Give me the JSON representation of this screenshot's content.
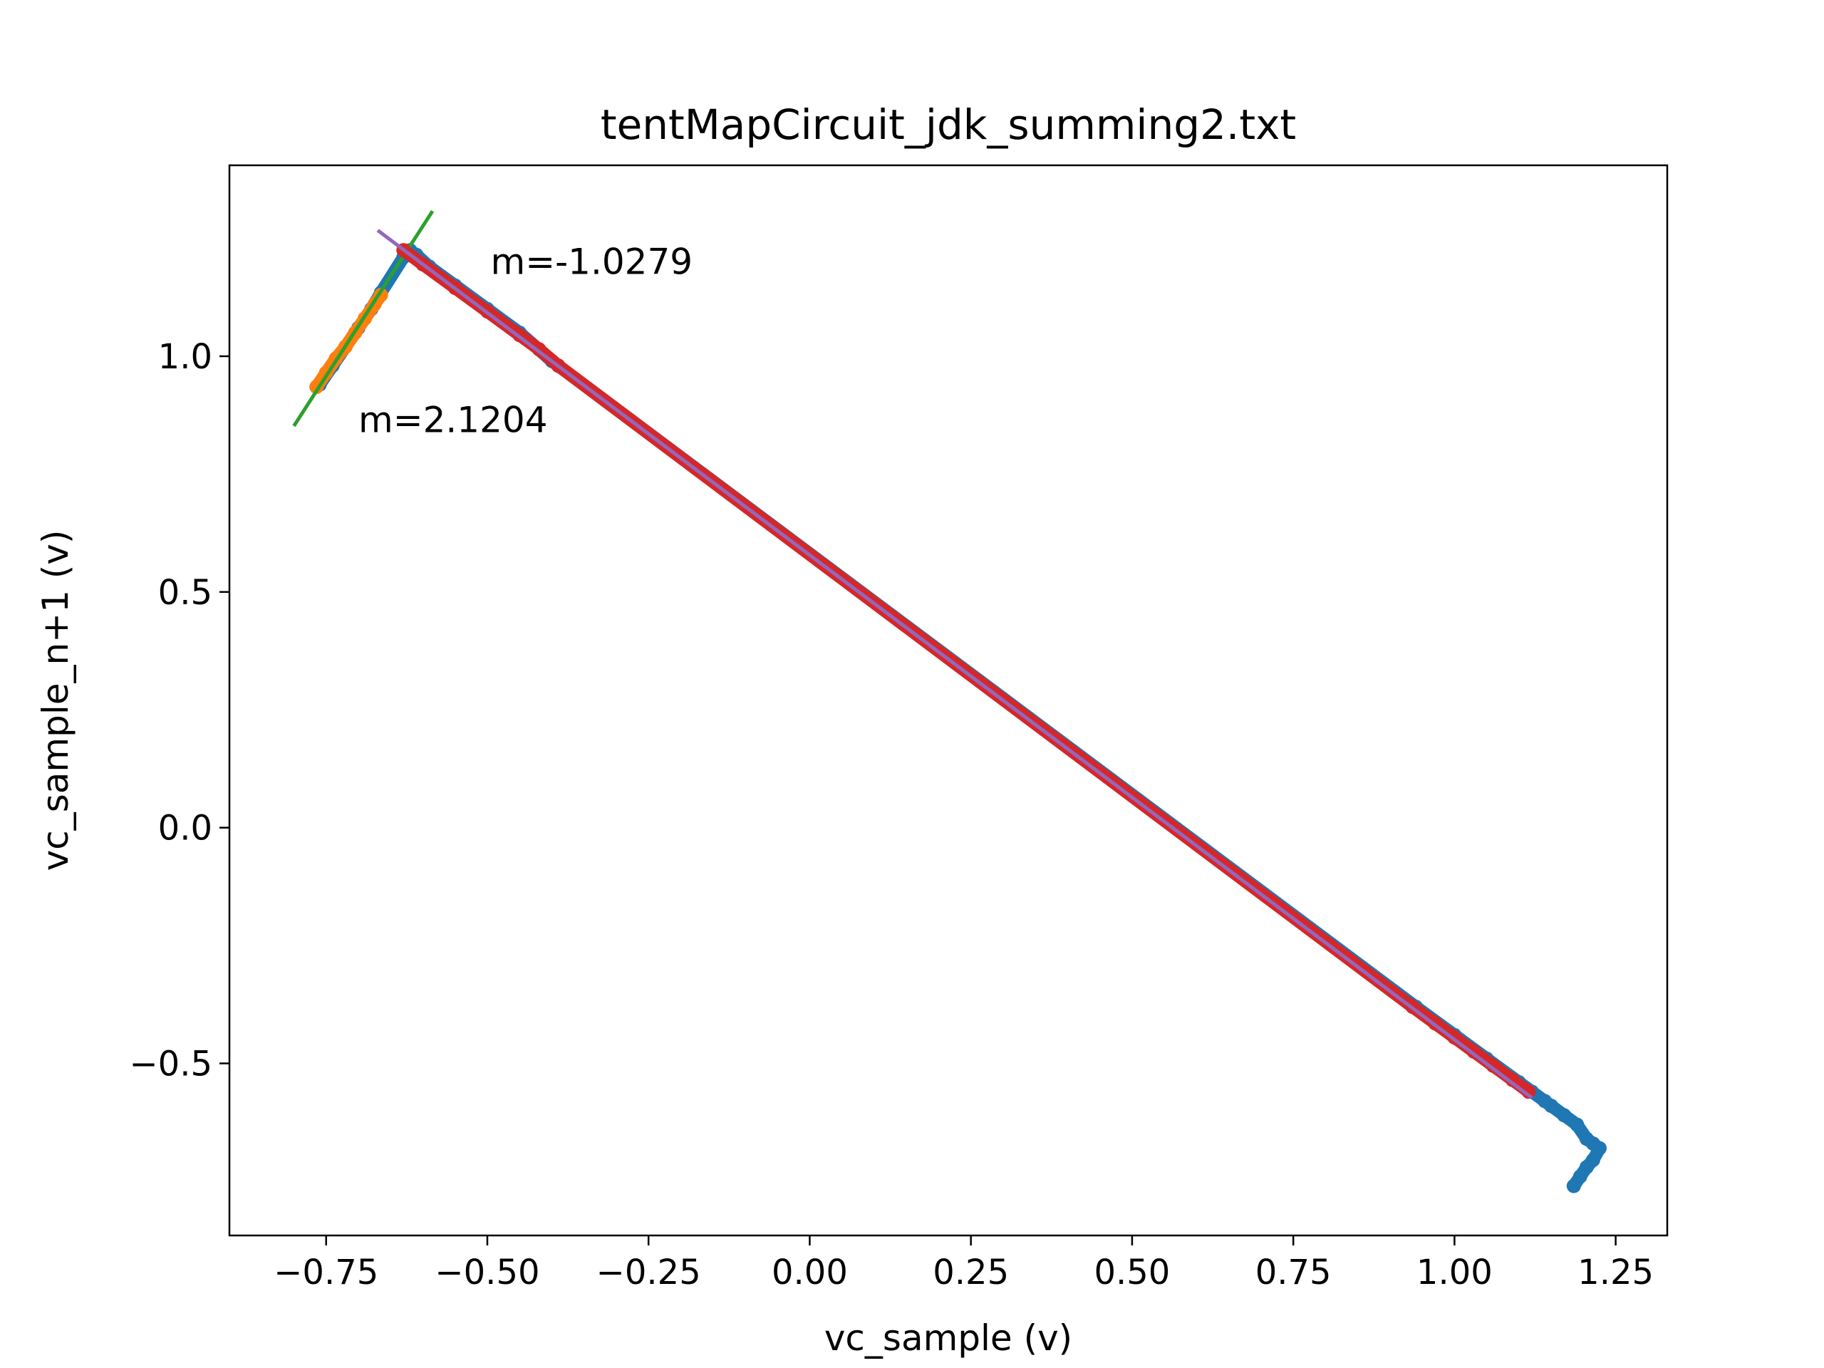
{
  "chart_data": {
    "type": "scatter",
    "title": "tentMapCircuit_jdk_summing2.txt",
    "xlabel": "vc_sample (v)",
    "ylabel": "vc_sample_n+1 (v)",
    "xlim": [
      -0.9,
      1.33
    ],
    "ylim": [
      -0.865,
      1.405
    ],
    "xticks": [
      {
        "value": -0.75,
        "label": "−0.75"
      },
      {
        "value": -0.5,
        "label": "−0.50"
      },
      {
        "value": -0.25,
        "label": "−0.25"
      },
      {
        "value": 0.0,
        "label": "0.00"
      },
      {
        "value": 0.25,
        "label": "0.25"
      },
      {
        "value": 0.5,
        "label": "0.50"
      },
      {
        "value": 0.75,
        "label": "0.75"
      },
      {
        "value": 1.0,
        "label": "1.00"
      },
      {
        "value": 1.25,
        "label": "1.25"
      }
    ],
    "yticks": [
      {
        "value": -0.5,
        "label": "−0.5"
      },
      {
        "value": 0.0,
        "label": "0.0"
      },
      {
        "value": 0.5,
        "label": "0.5"
      },
      {
        "value": 1.0,
        "label": "1.0"
      }
    ],
    "grid": false,
    "series": [
      {
        "color": "#1f77b4",
        "kind": "points",
        "points": [
          [
            -0.76,
            0.94
          ],
          [
            -0.74,
            0.98
          ],
          [
            -0.72,
            1.02
          ],
          [
            -0.7,
            1.06
          ],
          [
            -0.68,
            1.1
          ],
          [
            -0.665,
            1.135
          ],
          [
            -0.63,
            1.21
          ],
          [
            -0.62,
            1.225
          ],
          [
            -0.61,
            1.215
          ],
          [
            -0.59,
            1.19
          ],
          [
            -0.55,
            1.15
          ],
          [
            -0.5,
            1.1
          ],
          [
            -0.45,
            1.05
          ],
          [
            -0.4,
            0.99
          ],
          [
            -0.39,
            0.98
          ],
          [
            0.94,
            -0.38
          ],
          [
            1.0,
            -0.44
          ],
          [
            1.05,
            -0.49
          ],
          [
            1.1,
            -0.54
          ],
          [
            1.12,
            -0.56
          ],
          [
            1.14,
            -0.58
          ],
          [
            1.15,
            -0.59
          ],
          [
            1.17,
            -0.61
          ],
          [
            1.19,
            -0.63
          ],
          [
            1.205,
            -0.66
          ],
          [
            1.215,
            -0.67
          ],
          [
            1.225,
            -0.68
          ],
          [
            1.215,
            -0.705
          ],
          [
            1.205,
            -0.72
          ],
          [
            1.195,
            -0.74
          ],
          [
            1.185,
            -0.76
          ]
        ]
      },
      {
        "color": "#ff7f0e",
        "kind": "points",
        "points": [
          [
            -0.765,
            0.935
          ],
          [
            -0.75,
            0.965
          ],
          [
            -0.735,
            0.995
          ],
          [
            -0.72,
            1.02
          ],
          [
            -0.705,
            1.05
          ],
          [
            -0.69,
            1.08
          ],
          [
            -0.675,
            1.11
          ],
          [
            -0.665,
            1.13
          ]
        ]
      },
      {
        "color": "#2ca02c",
        "kind": "fit-line",
        "points": [
          [
            -0.8,
            0.852
          ],
          [
            -0.585,
            1.308
          ]
        ]
      },
      {
        "color": "#d62728",
        "kind": "points",
        "points": [
          [
            -0.63,
            1.225
          ],
          [
            -0.6,
            1.195
          ],
          [
            -0.55,
            1.145
          ],
          [
            -0.5,
            1.095
          ],
          [
            -0.45,
            1.045
          ],
          [
            -0.42,
            1.015
          ],
          [
            -0.39,
            0.98
          ],
          [
            0.935,
            -0.38
          ],
          [
            0.97,
            -0.415
          ],
          [
            1.0,
            -0.445
          ],
          [
            1.03,
            -0.475
          ],
          [
            1.06,
            -0.505
          ],
          [
            1.09,
            -0.535
          ],
          [
            1.115,
            -0.56
          ]
        ]
      },
      {
        "color": "#9467bd",
        "kind": "fit-line",
        "points": [
          [
            -0.67,
            1.267
          ],
          [
            1.12,
            -0.573
          ]
        ]
      }
    ],
    "annotations": [
      {
        "text": "m=-1.0279",
        "x": -0.495,
        "y": 1.2
      },
      {
        "text": "m=2.1204",
        "x": -0.7,
        "y": 0.865
      }
    ]
  }
}
